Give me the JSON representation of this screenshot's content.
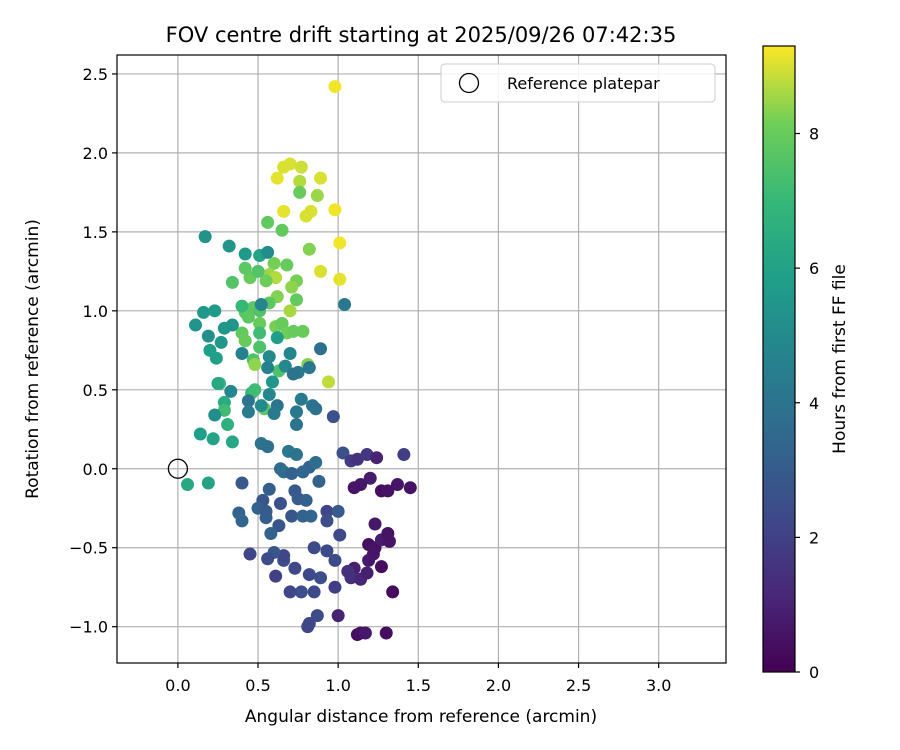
{
  "chart_data": {
    "type": "scatter",
    "title": "FOV centre drift starting at 2025/09/26 07:42:35",
    "xlabel": "Angular distance from reference (arcmin)",
    "ylabel": "Rotation from reference (arcmin)",
    "xlim": [
      -0.38,
      3.42
    ],
    "ylim": [
      -1.23,
      2.62
    ],
    "xticks": [
      0.0,
      0.5,
      1.0,
      1.5,
      2.0,
      2.5,
      3.0
    ],
    "yticks": [
      -1.0,
      -0.5,
      0.0,
      0.5,
      1.0,
      1.5,
      2.0,
      2.5
    ],
    "grid": true,
    "legend": {
      "placement": "top-right",
      "entries": [
        "Reference platepar"
      ]
    },
    "reference_point": {
      "label": "Reference platepar",
      "x": 0.0,
      "y": 0.0,
      "marker": "open-circle"
    },
    "colorbar": {
      "label": "Hours from first FF file",
      "range": [
        0,
        9.3
      ],
      "ticks": [
        0,
        2,
        4,
        6,
        8
      ],
      "colormap": "viridis"
    },
    "points": [
      {
        "x": 0.98,
        "y": 2.42,
        "h": 9.2
      },
      {
        "x": 0.62,
        "y": 1.84,
        "h": 9.1
      },
      {
        "x": 0.66,
        "y": 1.91,
        "h": 9.0
      },
      {
        "x": 0.7,
        "y": 1.93,
        "h": 9.0
      },
      {
        "x": 0.77,
        "y": 1.91,
        "h": 8.9
      },
      {
        "x": 0.89,
        "y": 1.84,
        "h": 9.0
      },
      {
        "x": 0.76,
        "y": 1.82,
        "h": 8.7
      },
      {
        "x": 0.87,
        "y": 1.73,
        "h": 8.5
      },
      {
        "x": 0.76,
        "y": 1.75,
        "h": 8.0
      },
      {
        "x": 0.66,
        "y": 1.63,
        "h": 9.1
      },
      {
        "x": 0.8,
        "y": 1.6,
        "h": 9.0
      },
      {
        "x": 0.83,
        "y": 1.63,
        "h": 9.0
      },
      {
        "x": 0.98,
        "y": 1.64,
        "h": 9.2
      },
      {
        "x": 0.56,
        "y": 1.56,
        "h": 7.9
      },
      {
        "x": 0.65,
        "y": 1.51,
        "h": 7.9
      },
      {
        "x": 1.01,
        "y": 1.43,
        "h": 9.2
      },
      {
        "x": 0.82,
        "y": 1.39,
        "h": 8.3
      },
      {
        "x": 0.89,
        "y": 1.25,
        "h": 9.0
      },
      {
        "x": 1.01,
        "y": 1.2,
        "h": 9.1
      },
      {
        "x": 0.6,
        "y": 1.3,
        "h": 8.2
      },
      {
        "x": 0.68,
        "y": 1.29,
        "h": 8.0
      },
      {
        "x": 0.57,
        "y": 1.23,
        "h": 8.5
      },
      {
        "x": 0.61,
        "y": 1.21,
        "h": 8.7
      },
      {
        "x": 0.55,
        "y": 1.19,
        "h": 8.1
      },
      {
        "x": 0.45,
        "y": 1.21,
        "h": 8.0
      },
      {
        "x": 0.34,
        "y": 1.18,
        "h": 7.6
      },
      {
        "x": 0.42,
        "y": 1.27,
        "h": 7.8
      },
      {
        "x": 0.5,
        "y": 1.25,
        "h": 7.6
      },
      {
        "x": 0.74,
        "y": 1.19,
        "h": 8.2
      },
      {
        "x": 0.71,
        "y": 1.15,
        "h": 8.4
      },
      {
        "x": 0.62,
        "y": 1.09,
        "h": 8.3
      },
      {
        "x": 0.74,
        "y": 1.07,
        "h": 7.9
      },
      {
        "x": 0.57,
        "y": 1.05,
        "h": 7.8
      },
      {
        "x": 0.47,
        "y": 1.02,
        "h": 7.8
      },
      {
        "x": 0.42,
        "y": 0.99,
        "h": 7.7
      },
      {
        "x": 0.4,
        "y": 1.03,
        "h": 7.0
      },
      {
        "x": 0.51,
        "y": 1.0,
        "h": 7.6
      },
      {
        "x": 0.44,
        "y": 0.96,
        "h": 7.8
      },
      {
        "x": 0.51,
        "y": 0.92,
        "h": 8.0
      },
      {
        "x": 0.61,
        "y": 0.9,
        "h": 8.2
      },
      {
        "x": 0.65,
        "y": 0.92,
        "h": 8.0
      },
      {
        "x": 0.68,
        "y": 0.86,
        "h": 8.1
      },
      {
        "x": 0.72,
        "y": 0.87,
        "h": 8.0
      },
      {
        "x": 0.78,
        "y": 0.87,
        "h": 8.0
      },
      {
        "x": 0.7,
        "y": 1.0,
        "h": 8.6
      },
      {
        "x": 0.4,
        "y": 0.86,
        "h": 7.9
      },
      {
        "x": 0.42,
        "y": 0.81,
        "h": 8.0
      },
      {
        "x": 0.51,
        "y": 0.86,
        "h": 7.2
      },
      {
        "x": 0.51,
        "y": 0.77,
        "h": 7.5
      },
      {
        "x": 0.47,
        "y": 0.69,
        "h": 7.5
      },
      {
        "x": 0.48,
        "y": 0.66,
        "h": 8.4
      },
      {
        "x": 0.63,
        "y": 0.62,
        "h": 7.5
      },
      {
        "x": 0.81,
        "y": 0.66,
        "h": 8.3
      },
      {
        "x": 0.94,
        "y": 0.55,
        "h": 8.8
      },
      {
        "x": 0.54,
        "y": 0.38,
        "h": 7.8
      },
      {
        "x": 0.46,
        "y": 0.48,
        "h": 7.0
      },
      {
        "x": 0.48,
        "y": 0.5,
        "h": 7.2
      },
      {
        "x": 0.26,
        "y": 0.54,
        "h": 7.0
      },
      {
        "x": 0.25,
        "y": 0.54,
        "h": 6.3
      },
      {
        "x": 0.29,
        "y": 0.42,
        "h": 6.4
      },
      {
        "x": 0.29,
        "y": 0.37,
        "h": 7.2
      },
      {
        "x": 0.31,
        "y": 0.28,
        "h": 6.6
      },
      {
        "x": 0.34,
        "y": 0.17,
        "h": 6.2
      },
      {
        "x": 0.22,
        "y": 0.19,
        "h": 6.1
      },
      {
        "x": 0.14,
        "y": 0.22,
        "h": 5.8
      },
      {
        "x": 0.06,
        "y": -0.1,
        "h": 6.3
      },
      {
        "x": 0.19,
        "y": -0.09,
        "h": 6.1
      },
      {
        "x": 0.17,
        "y": 1.47,
        "h": 5.3
      },
      {
        "x": 0.32,
        "y": 1.41,
        "h": 5.4
      },
      {
        "x": 0.42,
        "y": 1.36,
        "h": 5.6
      },
      {
        "x": 0.51,
        "y": 1.35,
        "h": 6.1
      },
      {
        "x": 0.56,
        "y": 1.37,
        "h": 5.1
      },
      {
        "x": 0.16,
        "y": 0.99,
        "h": 5.6
      },
      {
        "x": 0.23,
        "y": 1.0,
        "h": 5.7
      },
      {
        "x": 0.11,
        "y": 0.91,
        "h": 5.4
      },
      {
        "x": 0.19,
        "y": 0.84,
        "h": 5.2
      },
      {
        "x": 0.27,
        "y": 0.8,
        "h": 5.5
      },
      {
        "x": 0.29,
        "y": 0.89,
        "h": 5.6
      },
      {
        "x": 0.34,
        "y": 0.91,
        "h": 5.4
      },
      {
        "x": 0.2,
        "y": 0.75,
        "h": 5.8
      },
      {
        "x": 0.24,
        "y": 0.7,
        "h": 5.9
      },
      {
        "x": 0.33,
        "y": 0.49,
        "h": 4.8
      },
      {
        "x": 0.23,
        "y": 0.34,
        "h": 5.1
      },
      {
        "x": 0.52,
        "y": 1.04,
        "h": 4.8
      },
      {
        "x": 0.57,
        "y": 0.71,
        "h": 4.9
      },
      {
        "x": 0.4,
        "y": 0.73,
        "h": 4.6
      },
      {
        "x": 0.62,
        "y": 0.83,
        "h": 5.8
      },
      {
        "x": 0.59,
        "y": 0.55,
        "h": 5.5
      },
      {
        "x": 0.67,
        "y": 0.65,
        "h": 4.9
      },
      {
        "x": 0.7,
        "y": 0.73,
        "h": 4.8
      },
      {
        "x": 0.75,
        "y": 0.61,
        "h": 4.3
      },
      {
        "x": 0.82,
        "y": 0.64,
        "h": 4.1
      },
      {
        "x": 0.56,
        "y": 0.64,
        "h": 4.6
      },
      {
        "x": 0.62,
        "y": 0.4,
        "h": 4.0
      },
      {
        "x": 0.57,
        "y": 0.47,
        "h": 4.8
      },
      {
        "x": 0.52,
        "y": 0.4,
        "h": 5.0
      },
      {
        "x": 0.44,
        "y": 0.43,
        "h": 4.0
      },
      {
        "x": 0.44,
        "y": 0.36,
        "h": 4.4
      },
      {
        "x": 0.77,
        "y": 0.44,
        "h": 4.3
      },
      {
        "x": 0.74,
        "y": 0.36,
        "h": 4.2
      },
      {
        "x": 0.74,
        "y": 0.28,
        "h": 4.0
      },
      {
        "x": 0.6,
        "y": 0.35,
        "h": 4.3
      },
      {
        "x": 0.84,
        "y": 0.4,
        "h": 4.1
      },
      {
        "x": 0.86,
        "y": 0.38,
        "h": 3.9
      },
      {
        "x": 0.72,
        "y": 0.6,
        "h": 4.0
      },
      {
        "x": 1.04,
        "y": 1.04,
        "h": 4.2
      },
      {
        "x": 0.89,
        "y": 0.76,
        "h": 3.8
      },
      {
        "x": 0.52,
        "y": 0.16,
        "h": 4.0
      },
      {
        "x": 0.56,
        "y": 0.14,
        "h": 3.9
      },
      {
        "x": 0.69,
        "y": 0.11,
        "h": 4.2
      },
      {
        "x": 0.74,
        "y": 0.09,
        "h": 4.0
      },
      {
        "x": 0.64,
        "y": 0.0,
        "h": 3.6
      },
      {
        "x": 0.66,
        "y": -0.02,
        "h": 3.7
      },
      {
        "x": 0.71,
        "y": -0.03,
        "h": 3.2
      },
      {
        "x": 0.82,
        "y": 0.01,
        "h": 3.3
      },
      {
        "x": 0.86,
        "y": 0.04,
        "h": 3.7
      },
      {
        "x": 0.78,
        "y": -0.02,
        "h": 3.4
      },
      {
        "x": 0.97,
        "y": 0.33,
        "h": 2.6
      },
      {
        "x": 0.57,
        "y": -0.13,
        "h": 3.1
      },
      {
        "x": 0.53,
        "y": -0.2,
        "h": 2.8
      },
      {
        "x": 0.5,
        "y": -0.25,
        "h": 3.3
      },
      {
        "x": 0.55,
        "y": -0.27,
        "h": 3.0
      },
      {
        "x": 0.55,
        "y": -0.31,
        "h": 3.1
      },
      {
        "x": 0.64,
        "y": -0.22,
        "h": 2.6
      },
      {
        "x": 0.73,
        "y": -0.14,
        "h": 2.9
      },
      {
        "x": 0.75,
        "y": -0.19,
        "h": 3.0
      },
      {
        "x": 0.8,
        "y": -0.2,
        "h": 3.2
      },
      {
        "x": 0.71,
        "y": -0.3,
        "h": 2.8
      },
      {
        "x": 0.78,
        "y": -0.3,
        "h": 3.3
      },
      {
        "x": 0.83,
        "y": -0.3,
        "h": 3.4
      },
      {
        "x": 0.88,
        "y": -0.08,
        "h": 3.3
      },
      {
        "x": 0.63,
        "y": -0.36,
        "h": 2.8
      },
      {
        "x": 0.58,
        "y": -0.41,
        "h": 3.3
      },
      {
        "x": 0.38,
        "y": -0.28,
        "h": 3.3
      },
      {
        "x": 0.4,
        "y": -0.33,
        "h": 3.4
      },
      {
        "x": 0.4,
        "y": -0.09,
        "h": 2.9
      },
      {
        "x": 0.93,
        "y": -0.27,
        "h": 2.2
      },
      {
        "x": 0.93,
        "y": -0.33,
        "h": 2.5
      },
      {
        "x": 1.0,
        "y": -0.27,
        "h": 3.0
      },
      {
        "x": 1.03,
        "y": 0.1,
        "h": 2.6
      },
      {
        "x": 1.08,
        "y": 0.05,
        "h": 1.8
      },
      {
        "x": 1.12,
        "y": 0.06,
        "h": 1.5
      },
      {
        "x": 1.18,
        "y": 0.09,
        "h": 1.7
      },
      {
        "x": 1.24,
        "y": 0.07,
        "h": 1.0
      },
      {
        "x": 1.41,
        "y": 0.09,
        "h": 1.9
      },
      {
        "x": 1.2,
        "y": -0.06,
        "h": 0.8
      },
      {
        "x": 1.14,
        "y": -0.1,
        "h": 0.7
      },
      {
        "x": 1.1,
        "y": -0.12,
        "h": 0.6
      },
      {
        "x": 1.27,
        "y": -0.14,
        "h": 0.4
      },
      {
        "x": 1.31,
        "y": -0.14,
        "h": 0.5
      },
      {
        "x": 1.37,
        "y": -0.1,
        "h": 0.6
      },
      {
        "x": 1.45,
        "y": -0.12,
        "h": 0.5
      },
      {
        "x": 1.23,
        "y": -0.35,
        "h": 0.7
      },
      {
        "x": 1.01,
        "y": -0.42,
        "h": 2.3
      },
      {
        "x": 1.19,
        "y": -0.48,
        "h": 0.4
      },
      {
        "x": 1.23,
        "y": -0.5,
        "h": 0.5
      },
      {
        "x": 1.27,
        "y": -0.45,
        "h": 0.8
      },
      {
        "x": 1.32,
        "y": -0.46,
        "h": 0.6
      },
      {
        "x": 1.31,
        "y": -0.41,
        "h": 0.5
      },
      {
        "x": 1.22,
        "y": -0.54,
        "h": 0.6
      },
      {
        "x": 1.19,
        "y": -0.58,
        "h": 0.7
      },
      {
        "x": 1.1,
        "y": -0.63,
        "h": 0.9
      },
      {
        "x": 1.27,
        "y": -0.62,
        "h": 0.4
      },
      {
        "x": 1.06,
        "y": -0.65,
        "h": 1.5
      },
      {
        "x": 1.08,
        "y": -0.69,
        "h": 1.4
      },
      {
        "x": 1.14,
        "y": -0.7,
        "h": 1.1
      },
      {
        "x": 1.18,
        "y": -0.66,
        "h": 0.9
      },
      {
        "x": 1.14,
        "y": -1.04,
        "h": 0.6
      },
      {
        "x": 1.12,
        "y": -1.05,
        "h": 0.4
      },
      {
        "x": 1.17,
        "y": -1.04,
        "h": 0.7
      },
      {
        "x": 1.3,
        "y": -1.04,
        "h": 0.4
      },
      {
        "x": 1.34,
        "y": -0.78,
        "h": 0.3
      },
      {
        "x": 0.98,
        "y": -0.58,
        "h": 2.4
      },
      {
        "x": 0.98,
        "y": -0.75,
        "h": 1.9
      },
      {
        "x": 1.0,
        "y": -0.93,
        "h": 1.0
      },
      {
        "x": 0.82,
        "y": -0.98,
        "h": 2.3
      },
      {
        "x": 0.81,
        "y": -1.0,
        "h": 2.2
      },
      {
        "x": 0.87,
        "y": -0.93,
        "h": 2.4
      },
      {
        "x": 0.82,
        "y": -0.67,
        "h": 2.3
      },
      {
        "x": 0.89,
        "y": -0.69,
        "h": 2.5
      },
      {
        "x": 0.85,
        "y": -0.5,
        "h": 2.4
      },
      {
        "x": 0.93,
        "y": -0.52,
        "h": 2.3
      },
      {
        "x": 0.85,
        "y": -0.78,
        "h": 2.3
      },
      {
        "x": 0.77,
        "y": -0.78,
        "h": 2.5
      },
      {
        "x": 0.7,
        "y": -0.78,
        "h": 2.2
      },
      {
        "x": 0.73,
        "y": -0.63,
        "h": 2.3
      },
      {
        "x": 0.66,
        "y": -0.58,
        "h": 2.5
      },
      {
        "x": 0.66,
        "y": -0.55,
        "h": 2.2
      },
      {
        "x": 0.6,
        "y": -0.53,
        "h": 2.8
      },
      {
        "x": 0.56,
        "y": -0.57,
        "h": 2.4
      },
      {
        "x": 0.61,
        "y": -0.68,
        "h": 2.0
      },
      {
        "x": 0.45,
        "y": -0.54,
        "h": 2.2
      }
    ]
  }
}
